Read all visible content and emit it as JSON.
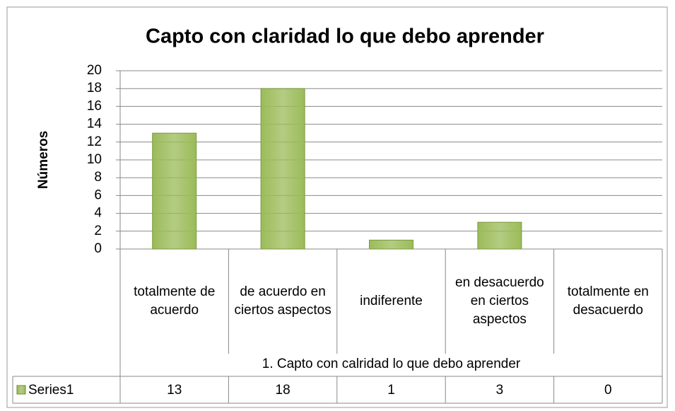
{
  "chart_data": {
    "type": "bar",
    "title": "Capto con claridad lo que debo aprender",
    "y_label": "Números",
    "group_label": "1. Capto con calridad lo que debo aprender",
    "categories": [
      "totalmente de acuerdo",
      "de acuerdo en ciertos aspectos",
      "indiferente",
      "en desacuerdo en ciertos aspectos",
      "totalmente en desacuerdo"
    ],
    "series": [
      {
        "name": "Series1",
        "color": "#9bbb59",
        "values": [
          13,
          18,
          1,
          3,
          0
        ]
      }
    ],
    "ylim": [
      0,
      20
    ],
    "yticks": [
      0,
      2,
      4,
      6,
      8,
      10,
      12,
      14,
      16,
      18,
      20
    ],
    "grid": true
  }
}
